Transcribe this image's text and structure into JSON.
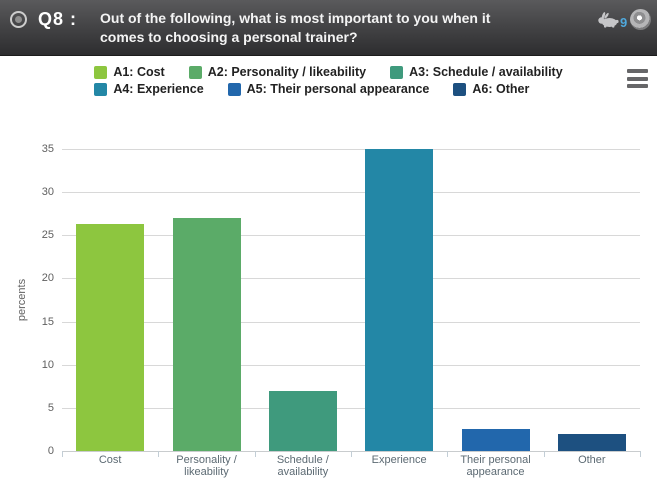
{
  "header": {
    "question_number": "Q8 :",
    "question_text": "Out of the following, what is most important to you when it comes to choosing a personal trainer?",
    "question_lines": [
      "Out of the following, what is most important to you when it",
      "comes to choosing a personal trainer?"
    ],
    "response_count": "9",
    "count_color": "#4fa8dc",
    "icons": {
      "left": "radio-button-icon",
      "speed": "rabbit-icon",
      "right": "target-record-icon"
    }
  },
  "toolbar": {
    "export_icon": "hamburger-menu-icon"
  },
  "chart_data": {
    "type": "bar",
    "title": "",
    "categories": [
      "Cost",
      "Personality / likeability",
      "Schedule / availability",
      "Experience",
      "Their personal appearance",
      "Other"
    ],
    "values": [
      26.3,
      27,
      7,
      35,
      2.5,
      2
    ],
    "colors": [
      "#8dc63f",
      "#5bab68",
      "#3f9a7d",
      "#2387a6",
      "#2267ac",
      "#1d5080"
    ],
    "legend": [
      "A1: Cost",
      "A2: Personality / likeability",
      "A3: Schedule / availability",
      "A4: Experience",
      "A5: Their personal appearance",
      "A6: Other"
    ],
    "legend_rows": [
      3,
      3
    ],
    "legend_position": "top",
    "xlabel": "",
    "ylabel": "percents",
    "ylim": [
      0,
      35
    ],
    "yticks": [
      0,
      5,
      10,
      15,
      20,
      25,
      30,
      35
    ],
    "grid": true
  }
}
